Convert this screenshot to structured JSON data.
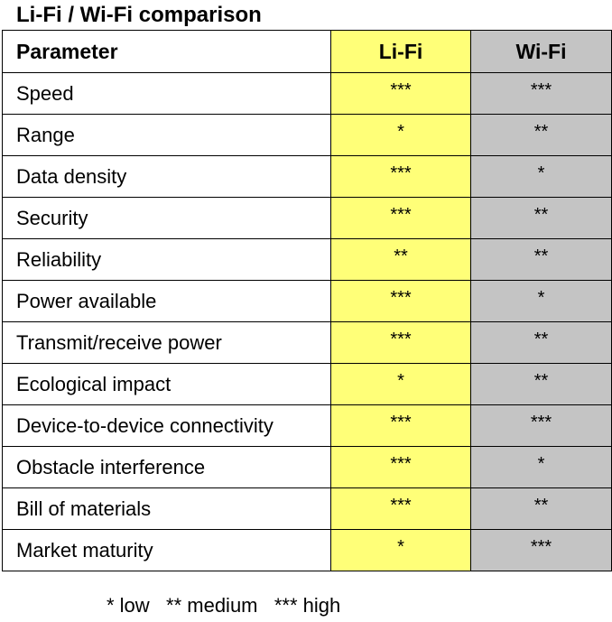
{
  "title": "Li-Fi / Wi-Fi comparison",
  "headers": {
    "parameter": "Parameter",
    "lifi": "Li-Fi",
    "wifi": "Wi-Fi"
  },
  "rows": [
    {
      "parameter": "Speed",
      "lifi": "***",
      "wifi": "***"
    },
    {
      "parameter": "Range",
      "lifi": "*",
      "wifi": "**"
    },
    {
      "parameter": "Data density",
      "lifi": "***",
      "wifi": "*"
    },
    {
      "parameter": "Security",
      "lifi": "***",
      "wifi": "**"
    },
    {
      "parameter": "Reliability",
      "lifi": "**",
      "wifi": "**"
    },
    {
      "parameter": "Power available",
      "lifi": "***",
      "wifi": "*"
    },
    {
      "parameter": "Transmit/receive power",
      "lifi": "***",
      "wifi": "**"
    },
    {
      "parameter": "Ecological impact",
      "lifi": "*",
      "wifi": "**"
    },
    {
      "parameter": "Device-to-device connectivity",
      "lifi": "***",
      "wifi": "***"
    },
    {
      "parameter": "Obstacle interference",
      "lifi": "***",
      "wifi": "*"
    },
    {
      "parameter": "Bill of materials",
      "lifi": "***",
      "wifi": "**"
    },
    {
      "parameter": "Market maturity",
      "lifi": "*",
      "wifi": "***"
    }
  ],
  "legend": "* low   ** medium   *** high",
  "colors": {
    "lifi_column": "#ffff78",
    "wifi_column": "#c4c4c4"
  }
}
